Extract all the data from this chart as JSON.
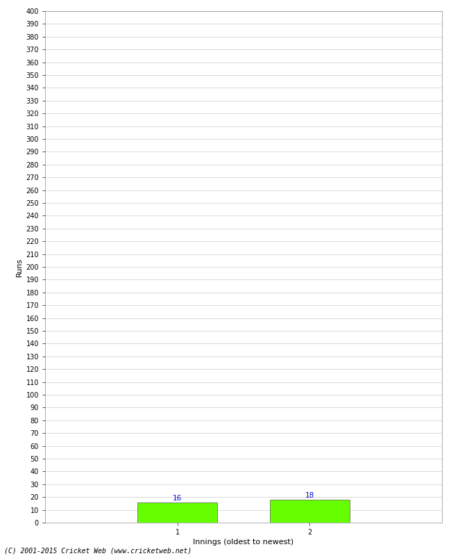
{
  "categories": [
    "1",
    "2"
  ],
  "values": [
    16,
    18
  ],
  "bar_color": "#66ff00",
  "bar_edge_color": "#555555",
  "xlabel": "Innings (oldest to newest)",
  "ylabel": "Runs",
  "ylim": [
    0,
    400
  ],
  "ytick_step": 10,
  "value_label_color": "#0000cc",
  "value_label_fontsize": 7.5,
  "axis_label_fontsize": 8,
  "tick_label_fontsize": 7,
  "footer": "(C) 2001-2015 Cricket Web (www.cricketweb.net)",
  "background_color": "#ffffff",
  "grid_color": "#cccccc",
  "bar_width": 0.6
}
